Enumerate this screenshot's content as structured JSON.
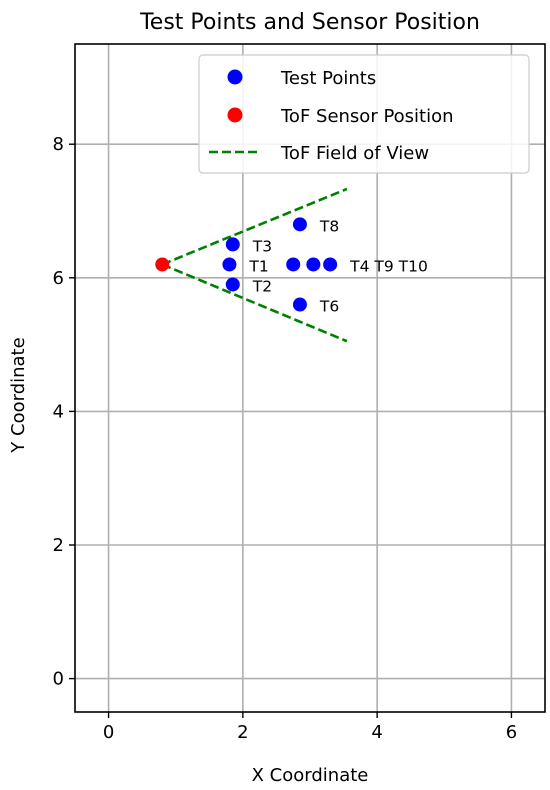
{
  "chart_data": {
    "type": "scatter",
    "title": "Test Points and Sensor Position",
    "xlabel": "X Coordinate",
    "ylabel": "Y Coordinate",
    "xlim": [
      -0.5,
      6.5
    ],
    "ylim": [
      -0.5,
      9.5
    ],
    "xticks": [
      0,
      2,
      4,
      6
    ],
    "yticks": [
      0,
      2,
      4,
      6,
      8
    ],
    "grid": true,
    "legend_position": "top-right",
    "series": [
      {
        "name": "Test Points",
        "kind": "scatter",
        "color": "#0000ff",
        "points": [
          {
            "x": 1.8,
            "y": 6.2,
            "label": "T1"
          },
          {
            "x": 1.85,
            "y": 5.9,
            "label": "T2"
          },
          {
            "x": 1.85,
            "y": 6.5,
            "label": "T3"
          },
          {
            "x": 2.75,
            "y": 6.2,
            "label": "T4"
          },
          {
            "x": 2.85,
            "y": 5.6,
            "label": "T6"
          },
          {
            "x": 2.85,
            "y": 6.8,
            "label": "T8"
          },
          {
            "x": 3.05,
            "y": 6.2,
            "label": "T9"
          },
          {
            "x": 3.3,
            "y": 6.2,
            "label": "T10"
          }
        ]
      },
      {
        "name": "ToF Sensor Position",
        "kind": "scatter",
        "color": "#ff0000",
        "points": [
          {
            "x": 0.8,
            "y": 6.2
          }
        ]
      },
      {
        "name": "ToF Field of View",
        "kind": "dashed-line",
        "color": "#008000",
        "lines": [
          [
            {
              "x": 0.8,
              "y": 6.2
            },
            {
              "x": 3.55,
              "y": 7.33
            }
          ],
          [
            {
              "x": 0.8,
              "y": 6.2
            },
            {
              "x": 3.55,
              "y": 5.05
            }
          ]
        ]
      }
    ],
    "annotations": [
      {
        "text": "T1",
        "x": 1.8,
        "y": 6.2
      },
      {
        "text": "T2",
        "x": 1.85,
        "y": 5.9
      },
      {
        "text": "T3",
        "x": 1.85,
        "y": 6.5
      },
      {
        "text": "T4 T9 T10",
        "x": 3.3,
        "y": 6.2
      },
      {
        "text": "T6",
        "x": 2.85,
        "y": 5.6
      },
      {
        "text": "T8",
        "x": 2.85,
        "y": 6.8
      }
    ]
  }
}
